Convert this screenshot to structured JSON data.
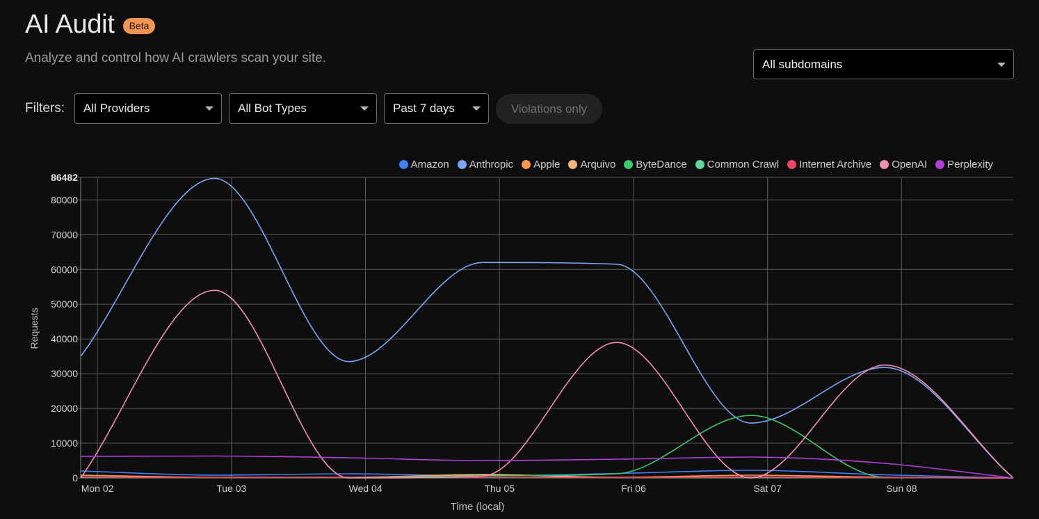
{
  "header": {
    "title": "AI Audit",
    "badge": "Beta",
    "subtitle": "Analyze and control how AI crawlers scan your site."
  },
  "subdomain_select": {
    "value": "All subdomains"
  },
  "filters": {
    "label": "Filters:",
    "provider": "All Providers",
    "bot_type": "All Bot Types",
    "period": "Past 7 days",
    "violations_toggle": "Violations only"
  },
  "colors": {
    "accent_badge": "#f4934f",
    "background": "#0e0e0f",
    "grid": "#5a5a5a"
  },
  "chart_data": {
    "type": "line",
    "xlabel": "Time (local)",
    "ylabel": "Requests",
    "ylim": [
      0,
      86482
    ],
    "yticks": [
      0,
      10000,
      20000,
      30000,
      40000,
      50000,
      60000,
      70000,
      80000,
      86482
    ],
    "xlim": [
      "2025-06-01T21:00",
      "2025-06-08T20:00"
    ],
    "xticks": [
      {
        "label": "Mon 02",
        "t": "2025-06-02T00:00"
      },
      {
        "label": "Tue 03",
        "t": "2025-06-03T00:00"
      },
      {
        "label": "Wed 04",
        "t": "2025-06-04T00:00"
      },
      {
        "label": "Thu 05",
        "t": "2025-06-05T00:00"
      },
      {
        "label": "Fri 06",
        "t": "2025-06-06T00:00"
      },
      {
        "label": "Sat 07",
        "t": "2025-06-07T00:00"
      },
      {
        "label": "Sun 08",
        "t": "2025-06-08T00:00"
      }
    ],
    "grid": true,
    "legend_position": "top-right",
    "x": [
      "2025-06-01T21:00",
      "2025-06-02T21:00",
      "2025-06-03T21:00",
      "2025-06-04T21:00",
      "2025-06-05T21:00",
      "2025-06-06T21:00",
      "2025-06-07T21:00",
      "2025-06-08T20:00"
    ],
    "series": [
      {
        "name": "Amazon",
        "color": "#3b82f6",
        "values": [
          2000,
          800,
          1200,
          600,
          1300,
          2200,
          900,
          0
        ]
      },
      {
        "name": "Anthropic",
        "color": "#7aa7f7",
        "values": [
          35000,
          86200,
          33500,
          62000,
          61500,
          15800,
          31800,
          0
        ]
      },
      {
        "name": "Apple",
        "color": "#f79a4c",
        "values": [
          800,
          200,
          200,
          1000,
          200,
          800,
          200,
          0
        ]
      },
      {
        "name": "Arquivo",
        "color": "#f5b67c",
        "values": [
          300,
          100,
          100,
          900,
          100,
          300,
          100,
          0
        ]
      },
      {
        "name": "ByteDance",
        "color": "#3cc76e",
        "values": [
          300,
          100,
          100,
          600,
          1200,
          18000,
          200,
          0
        ]
      },
      {
        "name": "Common Crawl",
        "color": "#5fd69a",
        "values": [
          100,
          100,
          100,
          100,
          100,
          100,
          100,
          0
        ]
      },
      {
        "name": "Internet Archive",
        "color": "#f0456b",
        "values": [
          200,
          100,
          100,
          100,
          100,
          200,
          100,
          0
        ]
      },
      {
        "name": "OpenAI",
        "color": "#f28fb0",
        "values": [
          0,
          54000,
          0,
          500,
          39000,
          0,
          32500,
          0
        ]
      },
      {
        "name": "Perplexity",
        "color": "#b23fd8",
        "values": [
          6200,
          6300,
          5800,
          5000,
          5400,
          6000,
          4200,
          0
        ]
      }
    ]
  }
}
